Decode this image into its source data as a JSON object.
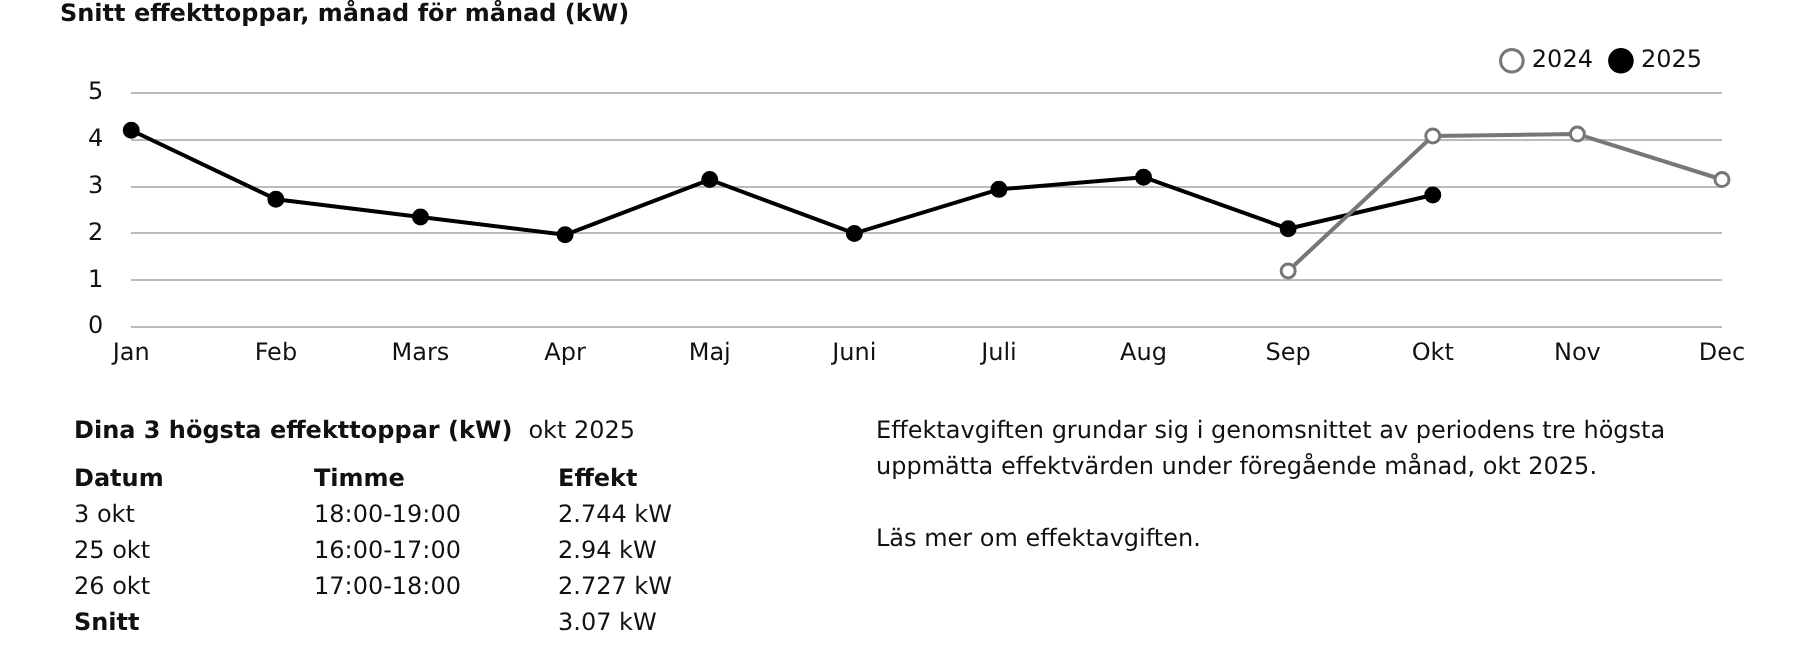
{
  "chart_data": {
    "type": "line",
    "title": "Snitt effekttoppar, månad för månad (kW)",
    "categories": [
      "Jan",
      "Feb",
      "Mars",
      "Apr",
      "Maj",
      "Juni",
      "Juli",
      "Aug",
      "Sep",
      "Okt",
      "Nov",
      "Dec"
    ],
    "series": [
      {
        "name": "2024",
        "color": "#777777",
        "values": [
          null,
          null,
          null,
          null,
          null,
          null,
          null,
          null,
          1.2,
          4.08,
          4.12,
          3.15
        ]
      },
      {
        "name": "2025",
        "color": "#000000",
        "values": [
          4.2,
          2.73,
          2.35,
          1.97,
          3.15,
          2.0,
          2.94,
          3.2,
          2.1,
          2.82,
          null,
          null
        ]
      }
    ],
    "ylim": [
      0,
      5
    ],
    "yticks": [
      0,
      1,
      2,
      3,
      4,
      5
    ],
    "grid": "y",
    "legend": "top right",
    "marker": "circle",
    "line_style": "solid",
    "annotations": [
      "Dina 3 högsta effekttoppar (kW)",
      "okt 2025",
      "Datum",
      "Timme",
      "Effekt",
      "3 okt",
      "18:00-19:00",
      "2.744 kW",
      "25 okt",
      "16:00-17:00",
      "2.94 kW",
      "26 okt",
      "17:00-18:00",
      "2.727 kW",
      "Snitt",
      "3.07 kW",
      "Effektavgiften grundar sig i genomsnittet av periodens tre högsta uppmätta effektvärden under föregående månad, okt 2025.",
      "Läs mer om effektavgiften."
    ]
  }
}
